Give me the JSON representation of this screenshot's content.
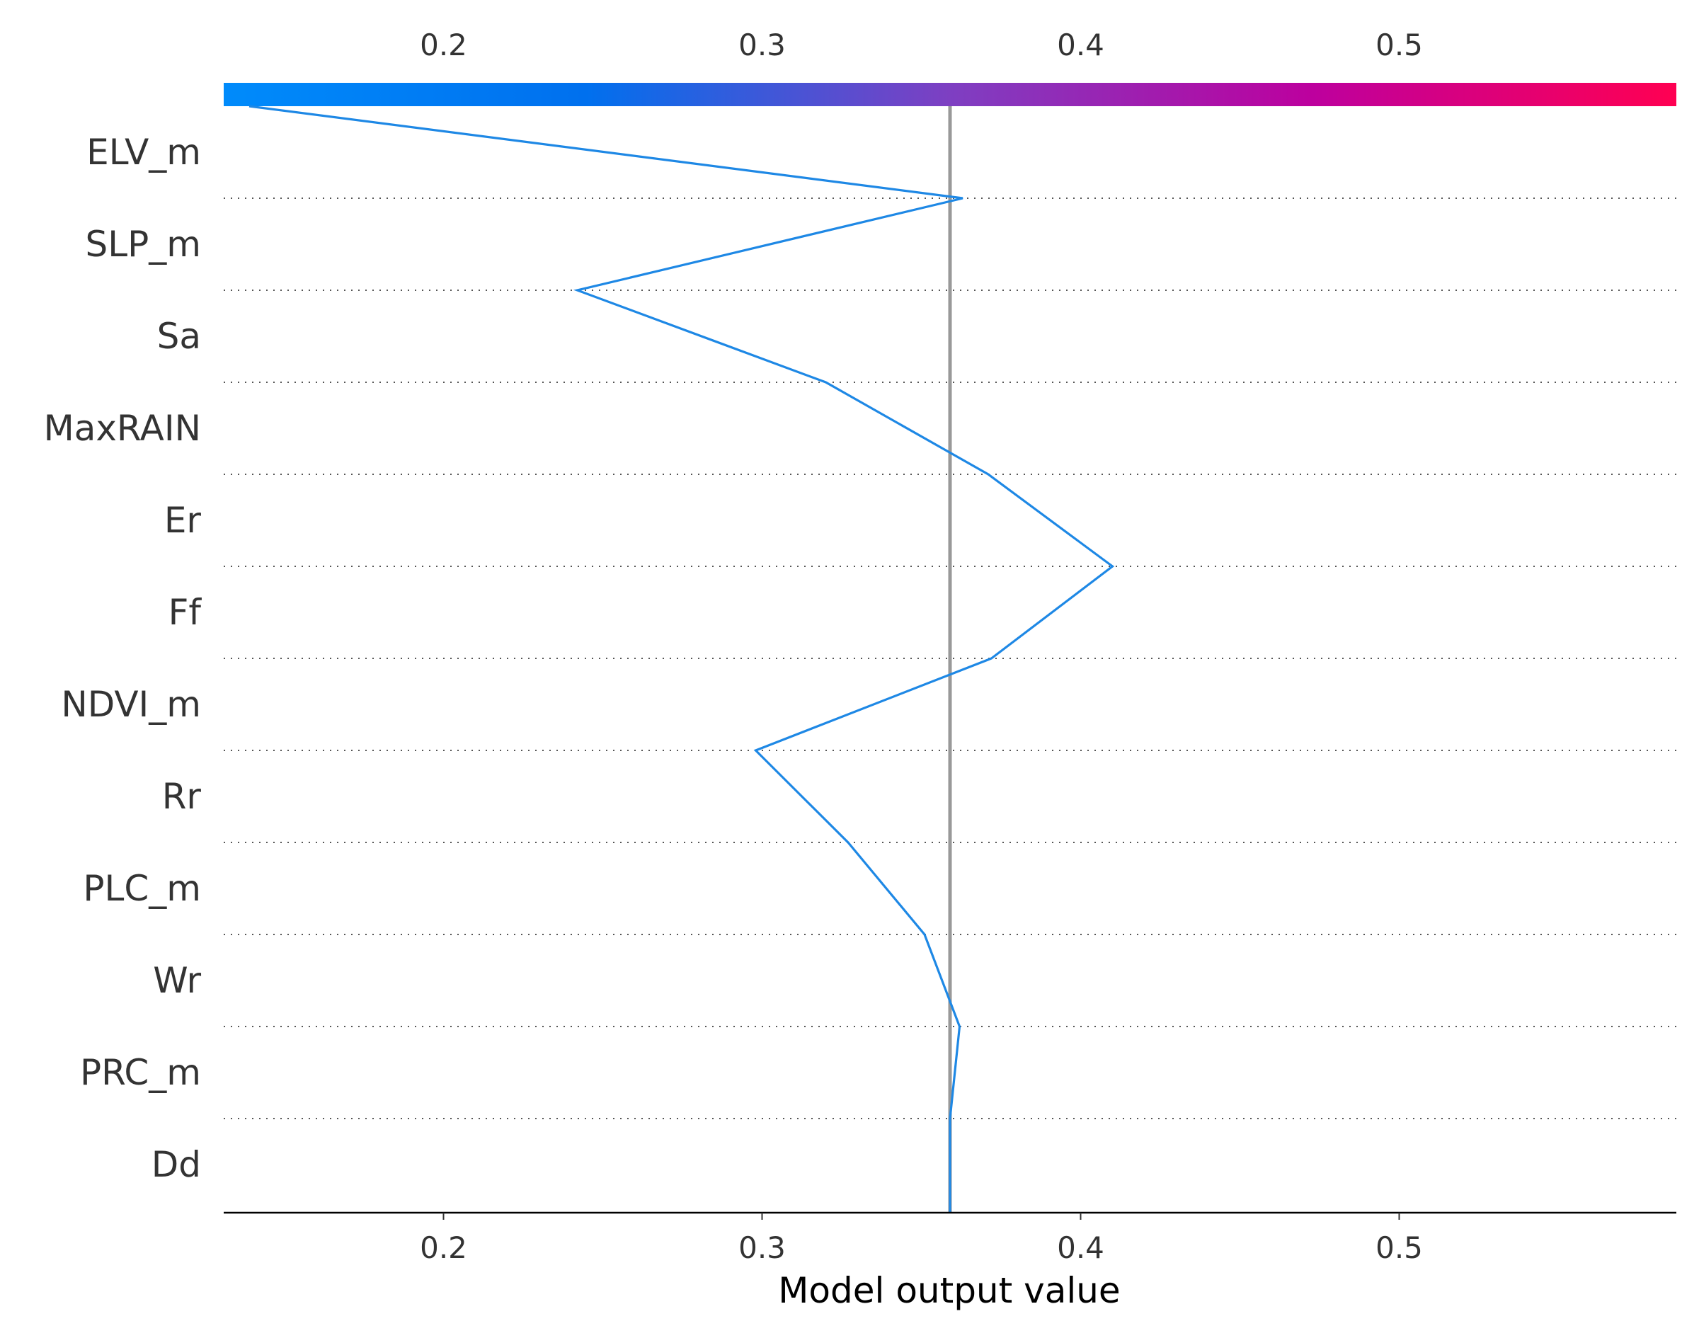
{
  "chart_data": {
    "type": "line",
    "chart_kind": "shap-decision-plot",
    "xlabel": "Model output value",
    "xlim": [
      0.131,
      0.587
    ],
    "x_ticks": [
      0.2,
      0.3,
      0.4,
      0.5
    ],
    "x_tick_labels": [
      "0.2",
      "0.3",
      "0.4",
      "0.5"
    ],
    "colorbar": {
      "position": "top",
      "range": [
        0.131,
        0.587
      ],
      "ticks": [
        0.2,
        0.3,
        0.4,
        0.5
      ],
      "tick_labels": [
        "0.2",
        "0.3",
        "0.4",
        "0.5"
      ],
      "colors": [
        "#008bfb",
        "#0070ee",
        "#7e3fc2",
        "#bd009e",
        "#ff0052"
      ]
    },
    "base_value": 0.359,
    "features": [
      "ELV_m",
      "SLP_m",
      "Sa",
      "MaxRAIN",
      "Er",
      "Ff",
      "NDVI_m",
      "Rr",
      "PLC_m",
      "Wr",
      "PRC_m",
      "Dd"
    ],
    "path": [
      0.139,
      0.363,
      0.242,
      0.32,
      0.371,
      0.41,
      0.372,
      0.298,
      0.327,
      0.351,
      0.362,
      0.359
    ],
    "line_color": "#1e88e5",
    "base_line_color": "#999999",
    "grid": "dotted horizontal separators between features"
  }
}
